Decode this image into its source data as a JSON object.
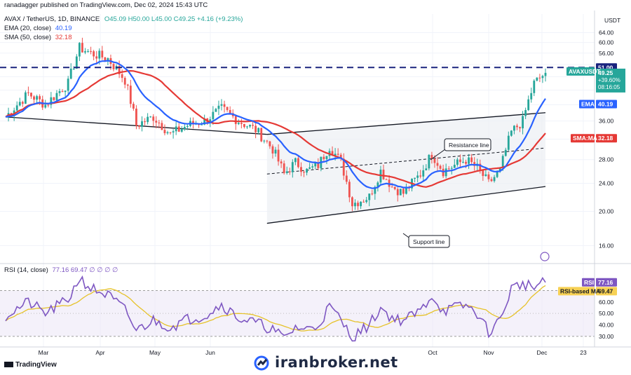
{
  "header": {
    "publisher": "ranadagger published on TradingView.com, Dec 02, 2024 15:43 UTC",
    "symbol_line": "AVAX / TetherUS, 1D, BINANCE",
    "ohlc": "O45.09 H50.00 L45.00 C49.25 +4.16 (+9.23%)",
    "ema_label": "EMA (20, close)",
    "ema_value": "40.19",
    "sma_label": "SMA (50, close)",
    "sma_value": "32.18",
    "rsi_label": "RSI (14, close)",
    "rsi_values": "77.16 69.47 ∅ ∅ ∅ ∅"
  },
  "footer": {
    "brand": "TradingView",
    "watermark": "iranbroker.net"
  },
  "colors": {
    "up": "#26a69a",
    "down": "#ef5350",
    "ema": "#2962ff",
    "sma": "#e53935",
    "rsi": "#7e57c2",
    "rsi_ma": "#e6c229",
    "channel": "#131722",
    "resistance": "#1a237e"
  },
  "chart_data": [
    {
      "type": "candlestick",
      "symbol": "AVAX / TetherUS",
      "interval": "1D",
      "exchange": "BINANCE",
      "currency_label": "USDT",
      "y_scale": "log",
      "ylim": [
        14.5,
        69
      ],
      "y_ticks": [
        16,
        20,
        24,
        28,
        32,
        36,
        40,
        44,
        48,
        52,
        56,
        60,
        64
      ],
      "x_ticks": [
        "Mar",
        "Apr",
        "May",
        "Jun",
        "Oct",
        "Nov",
        "Dec",
        "23"
      ],
      "last_close": 49.25,
      "last_change": "+39.60%",
      "countdown": "08:16:05",
      "price_series_key": [
        {
          "day": 0,
          "close": 37.0
        },
        {
          "day": 8,
          "close": 43.0
        },
        {
          "day": 14,
          "close": 40.0
        },
        {
          "day": 22,
          "close": 46.0
        },
        {
          "day": 26,
          "close": 58.0
        },
        {
          "day": 30,
          "close": 56.0
        },
        {
          "day": 36,
          "close": 54.0
        },
        {
          "day": 42,
          "close": 47.0
        },
        {
          "day": 46,
          "close": 35.0
        },
        {
          "day": 52,
          "close": 37.0
        },
        {
          "day": 58,
          "close": 33.0
        },
        {
          "day": 64,
          "close": 35.0
        },
        {
          "day": 70,
          "close": 36.0
        },
        {
          "day": 76,
          "close": 39.0
        },
        {
          "day": 82,
          "close": 36.0
        },
        {
          "day": 88,
          "close": 34.0
        },
        {
          "day": 94,
          "close": 30.0
        },
        {
          "day": 98,
          "close": 25.5
        },
        {
          "day": 102,
          "close": 27.5
        },
        {
          "day": 106,
          "close": 26.0
        },
        {
          "day": 110,
          "close": 27.0
        },
        {
          "day": 114,
          "close": 30.5
        },
        {
          "day": 118,
          "close": 27.5
        },
        {
          "day": 122,
          "close": 21.0
        },
        {
          "day": 128,
          "close": 22.0
        },
        {
          "day": 132,
          "close": 26.0
        },
        {
          "day": 136,
          "close": 23.5
        },
        {
          "day": 140,
          "close": 22.5
        },
        {
          "day": 146,
          "close": 25.5
        },
        {
          "day": 150,
          "close": 29.0
        },
        {
          "day": 154,
          "close": 26.0
        },
        {
          "day": 158,
          "close": 27.0
        },
        {
          "day": 162,
          "close": 28.0
        },
        {
          "day": 166,
          "close": 26.5
        },
        {
          "day": 170,
          "close": 24.0
        },
        {
          "day": 174,
          "close": 26.0
        },
        {
          "day": 178,
          "close": 33.5
        },
        {
          "day": 182,
          "close": 36.0
        },
        {
          "day": 186,
          "close": 46.0
        },
        {
          "day": 190,
          "close": 49.25
        }
      ],
      "overlays": [
        {
          "name": "EMA (20, close)",
          "last": 40.19,
          "label": "EMA"
        },
        {
          "name": "SMA (50, close)",
          "last": 32.18,
          "label": "SMA:MA"
        }
      ],
      "horizontal_level": {
        "value": 51.0,
        "style": "dashed"
      },
      "annotations": [
        {
          "text": "Resistance line",
          "type": "callout"
        },
        {
          "text": "Support line",
          "type": "callout"
        }
      ],
      "channel": {
        "lower_start": 18.5,
        "lower_end": 23.5,
        "upper_start": 33.0,
        "upper_end": 38.0,
        "mid_start": 25.5,
        "mid_end": 30.2
      }
    },
    {
      "type": "line",
      "title": "RSI (14, close)",
      "ylim": [
        25,
        85
      ],
      "y_ticks": [
        30.0,
        40.0,
        50.0,
        60.0
      ],
      "band": [
        30,
        70
      ],
      "series": [
        {
          "name": "RSI",
          "last": 77.16
        },
        {
          "name": "RSI-based MA",
          "last": 69.47
        }
      ],
      "rsi_key": [
        {
          "day": 0,
          "rsi": 48
        },
        {
          "day": 8,
          "rsi": 60
        },
        {
          "day": 14,
          "rsi": 50
        },
        {
          "day": 22,
          "rsi": 62
        },
        {
          "day": 26,
          "rsi": 81
        },
        {
          "day": 30,
          "rsi": 72
        },
        {
          "day": 36,
          "rsi": 66
        },
        {
          "day": 42,
          "rsi": 53
        },
        {
          "day": 46,
          "rsi": 35
        },
        {
          "day": 52,
          "rsi": 44
        },
        {
          "day": 58,
          "rsi": 38
        },
        {
          "day": 64,
          "rsi": 45
        },
        {
          "day": 70,
          "rsi": 48
        },
        {
          "day": 76,
          "rsi": 58
        },
        {
          "day": 82,
          "rsi": 46
        },
        {
          "day": 88,
          "rsi": 42
        },
        {
          "day": 94,
          "rsi": 36
        },
        {
          "day": 98,
          "rsi": 28
        },
        {
          "day": 102,
          "rsi": 38
        },
        {
          "day": 106,
          "rsi": 36
        },
        {
          "day": 110,
          "rsi": 40
        },
        {
          "day": 114,
          "rsi": 56
        },
        {
          "day": 118,
          "rsi": 44
        },
        {
          "day": 122,
          "rsi": 29
        },
        {
          "day": 128,
          "rsi": 40
        },
        {
          "day": 132,
          "rsi": 55
        },
        {
          "day": 136,
          "rsi": 46
        },
        {
          "day": 140,
          "rsi": 44
        },
        {
          "day": 146,
          "rsi": 52
        },
        {
          "day": 150,
          "rsi": 66
        },
        {
          "day": 154,
          "rsi": 52
        },
        {
          "day": 158,
          "rsi": 55
        },
        {
          "day": 162,
          "rsi": 57
        },
        {
          "day": 166,
          "rsi": 50
        },
        {
          "day": 170,
          "rsi": 34
        },
        {
          "day": 174,
          "rsi": 44
        },
        {
          "day": 178,
          "rsi": 72
        },
        {
          "day": 182,
          "rsi": 76
        },
        {
          "day": 186,
          "rsi": 73
        },
        {
          "day": 190,
          "rsi": 77.16
        }
      ]
    }
  ]
}
